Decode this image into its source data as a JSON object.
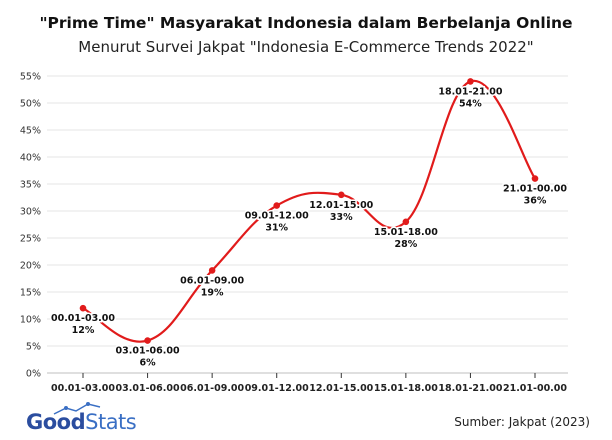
{
  "chart_data": {
    "type": "line",
    "title": "\"Prime Time\" Masyarakat Indonesia dalam Berbelanja Online",
    "subtitle": "Menurut Survei Jakpat \"Indonesia E-Commerce Trends 2022\"",
    "xlabel": "",
    "ylabel": "",
    "categories": [
      "00.01-03.00",
      "03.01-06.00",
      "06.01-09.00",
      "09.01-12.00",
      "12.01-15.00",
      "15.01-18.00",
      "18.01-21.00",
      "21.01-00.00"
    ],
    "series": [
      {
        "values": [
          12,
          6,
          19,
          31,
          33,
          28,
          54,
          36
        ],
        "color": "#e11b1b"
      }
    ],
    "data_labels": [
      "12%",
      "6%",
      "19%",
      "31%",
      "33%",
      "28%",
      "54%",
      "36%"
    ],
    "y_ticks": [
      "0%",
      "5%",
      "10%",
      "15%",
      "20%",
      "25%",
      "30%",
      "35%",
      "40%",
      "45%",
      "50%",
      "55%"
    ],
    "ylim": [
      0,
      55
    ],
    "grid": true,
    "smooth": true
  },
  "brand": {
    "logo_bold": "Good",
    "logo_light": "Stats",
    "color": "#2b4d9f"
  },
  "source": "Sumber: Jakpat (2023)"
}
